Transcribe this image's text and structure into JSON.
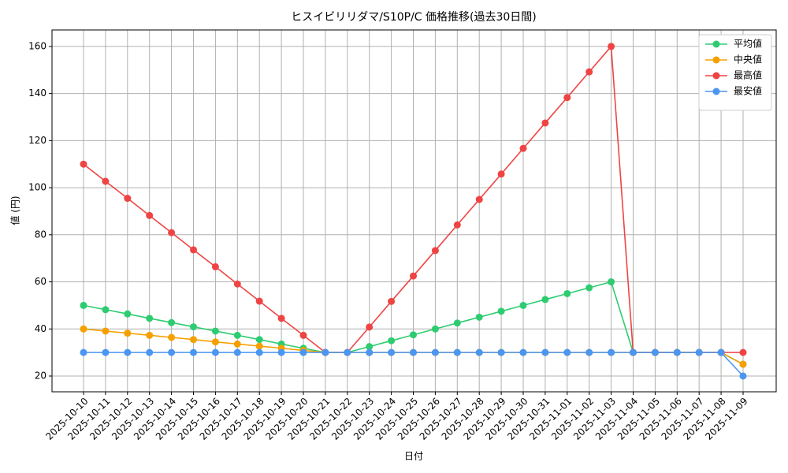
{
  "chart_data": {
    "type": "line",
    "title": "ヒスイビリリダマ/S10P/C 価格推移(過去30日間)",
    "x_label": "日付",
    "y_label": "値 (円)",
    "categories": [
      "2025-10-10",
      "2025-10-11",
      "2025-10-12",
      "2025-10-13",
      "2025-10-14",
      "2025-10-15",
      "2025-10-16",
      "2025-10-17",
      "2025-10-18",
      "2025-10-19",
      "2025-10-20",
      "2025-10-21",
      "2025-10-22",
      "2025-10-23",
      "2025-10-24",
      "2025-10-25",
      "2025-10-26",
      "2025-10-27",
      "2025-10-28",
      "2025-10-29",
      "2025-10-30",
      "2025-10-31",
      "2025-11-01",
      "2025-11-02",
      "2025-11-03",
      "2025-11-04",
      "2025-11-05",
      "2025-11-06",
      "2025-11-07",
      "2025-11-08",
      "2025-11-09"
    ],
    "series": [
      {
        "name": "平均値",
        "color": "#2ecc71",
        "values": [
          50,
          48.2,
          46.4,
          44.5,
          42.7,
          40.9,
          39.1,
          37.3,
          35.5,
          33.6,
          31.8,
          30,
          30,
          32.5,
          35,
          37.5,
          40,
          42.5,
          45,
          47.5,
          50,
          52.5,
          55,
          57.5,
          60,
          30,
          30,
          30,
          30,
          30,
          25
        ]
      },
      {
        "name": "中央値",
        "color": "#f5a000",
        "values": [
          40,
          39.1,
          38.2,
          37.3,
          36.4,
          35.5,
          34.5,
          33.6,
          32.7,
          31.8,
          30.9,
          30,
          30,
          30,
          30,
          30,
          30,
          30,
          30,
          30,
          30,
          30,
          30,
          30,
          30,
          30,
          30,
          30,
          30,
          30,
          25
        ]
      },
      {
        "name": "最高値",
        "color": "#ef4444",
        "values": [
          110,
          102.7,
          95.5,
          88.2,
          80.9,
          73.6,
          66.4,
          59.1,
          51.8,
          44.5,
          37.3,
          30,
          30,
          40.8,
          51.7,
          62.5,
          73.3,
          84.2,
          95,
          105.8,
          116.7,
          127.5,
          138.3,
          149.2,
          160,
          30,
          30,
          30,
          30,
          30,
          30
        ]
      },
      {
        "name": "最安値",
        "color": "#4b96f0",
        "values": [
          30,
          30,
          30,
          30,
          30,
          30,
          30,
          30,
          30,
          30,
          30,
          30,
          30,
          30,
          30,
          30,
          30,
          30,
          30,
          30,
          30,
          30,
          30,
          30,
          30,
          30,
          30,
          30,
          30,
          30,
          20
        ]
      }
    ],
    "ylim": [
      13.3,
      167
    ],
    "yticks": [
      20,
      40,
      60,
      80,
      100,
      120,
      140,
      160
    ],
    "grid": true,
    "legend": "upper right"
  }
}
